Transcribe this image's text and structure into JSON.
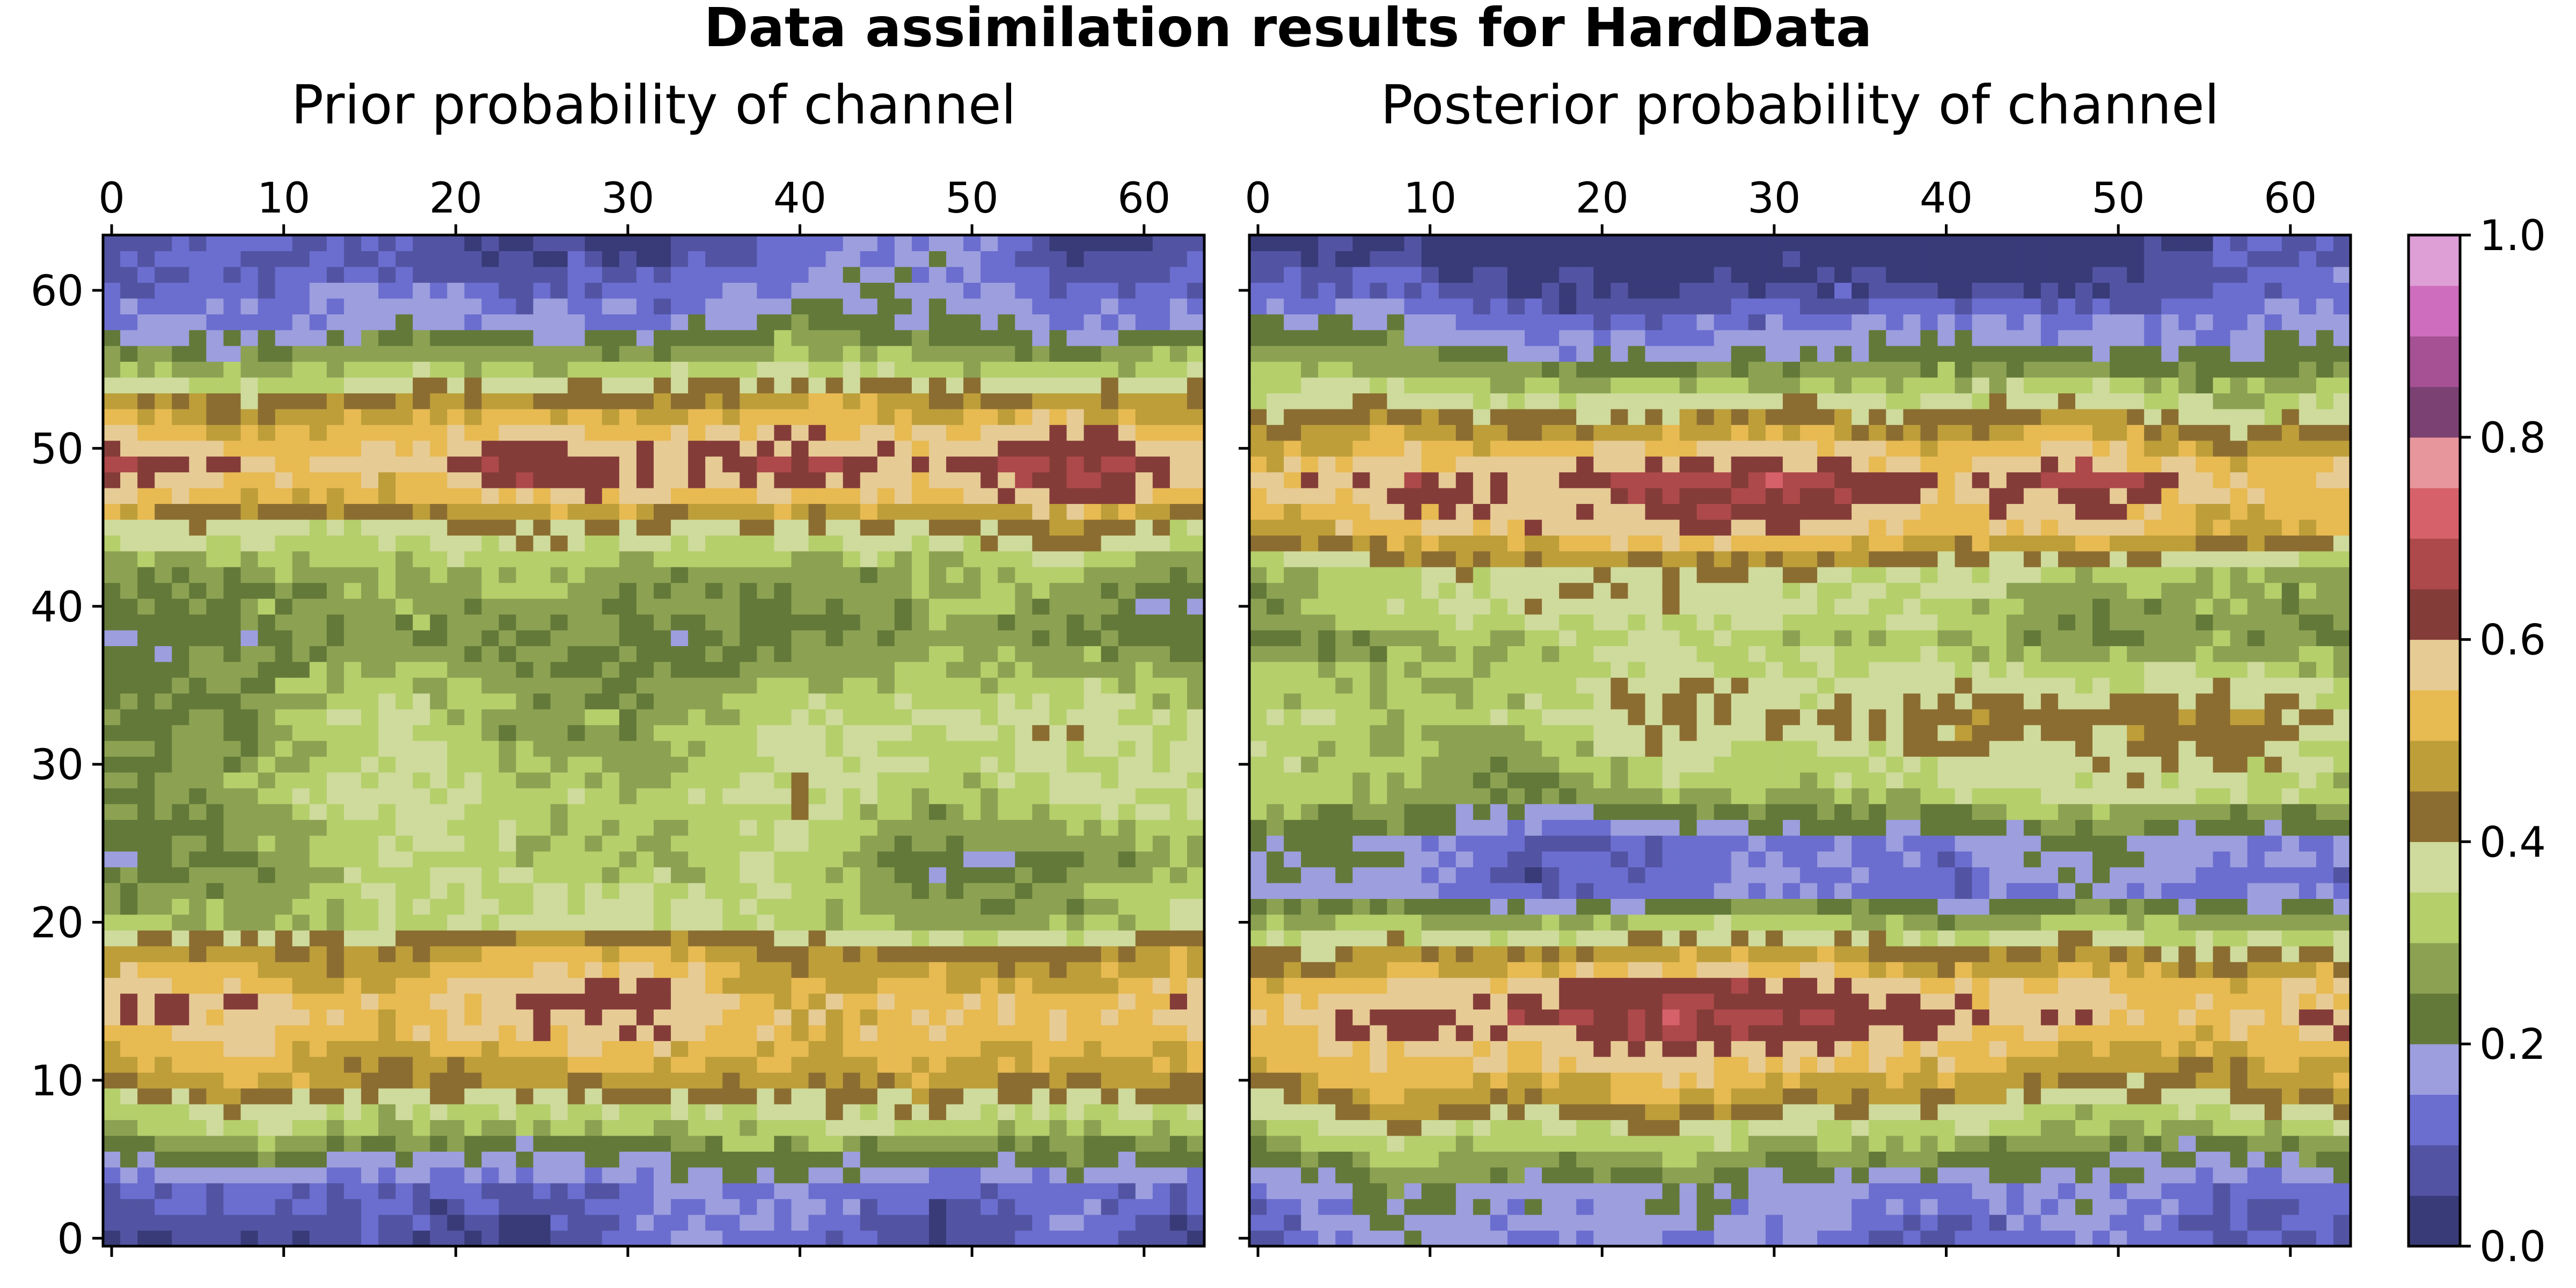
{
  "figure": {
    "title": "Data assimilation results for HardData"
  },
  "colorbar": {
    "ticks": [
      0.0,
      0.2,
      0.4,
      0.6,
      0.8,
      1.0
    ],
    "tick_labels": [
      "0.0",
      "0.2",
      "0.4",
      "0.6",
      "0.8",
      "1.0"
    ],
    "colormap": [
      "#393b79",
      "#5254a3",
      "#6b6ecf",
      "#9c9ede",
      "#637939",
      "#8ca252",
      "#b5cf6b",
      "#cedb9c",
      "#8c6d31",
      "#bd9e39",
      "#e7ba52",
      "#e7cb94",
      "#843c39",
      "#ad494a",
      "#d6616b",
      "#e7969c",
      "#7b4173",
      "#a55194",
      "#ce6dbd",
      "#de9ed6"
    ]
  },
  "chart_data": [
    {
      "type": "heatmap",
      "title": "Prior probability of channel",
      "grid_size": [
        64,
        64
      ],
      "x_ticks": [
        0,
        10,
        20,
        30,
        40,
        50,
        60
      ],
      "y_ticks": [
        0,
        10,
        20,
        30,
        40,
        50,
        60
      ],
      "xlim": [
        -0.5,
        63.5
      ],
      "ylim": [
        -0.5,
        63.5
      ],
      "vmin": 0.0,
      "vmax": 1.0,
      "row_profile": {
        "y": [
          0,
          3,
          5,
          8,
          10,
          13,
          15,
          18,
          20,
          24,
          28,
          33,
          38,
          42,
          45,
          47,
          49,
          51,
          53,
          55,
          58,
          61,
          63
        ],
        "p": [
          0.1,
          0.13,
          0.22,
          0.36,
          0.47,
          0.56,
          0.58,
          0.48,
          0.33,
          0.27,
          0.32,
          0.31,
          0.25,
          0.29,
          0.4,
          0.56,
          0.63,
          0.56,
          0.47,
          0.34,
          0.19,
          0.13,
          0.11
        ]
      },
      "texture_seed": 11
    },
    {
      "type": "heatmap",
      "title": "Posterior probability of channel",
      "grid_size": [
        64,
        64
      ],
      "x_ticks": [
        0,
        10,
        20,
        30,
        40,
        50,
        60
      ],
      "y_ticks": [
        0,
        10,
        20,
        30,
        40,
        50,
        60
      ],
      "xlim": [
        -0.5,
        63.5
      ],
      "ylim": [
        -0.5,
        63.5
      ],
      "vmin": 0.0,
      "vmax": 1.0,
      "row_profile": {
        "y": [
          0,
          3,
          6,
          9,
          12,
          14,
          16,
          18,
          20,
          22,
          25,
          28,
          33,
          38,
          42,
          45,
          48,
          50,
          53,
          56,
          60,
          63
        ],
        "p": [
          0.12,
          0.16,
          0.28,
          0.45,
          0.55,
          0.62,
          0.57,
          0.44,
          0.3,
          0.14,
          0.15,
          0.3,
          0.38,
          0.28,
          0.34,
          0.55,
          0.62,
          0.52,
          0.36,
          0.2,
          0.08,
          0.03
        ]
      },
      "texture_seed": 29
    }
  ]
}
